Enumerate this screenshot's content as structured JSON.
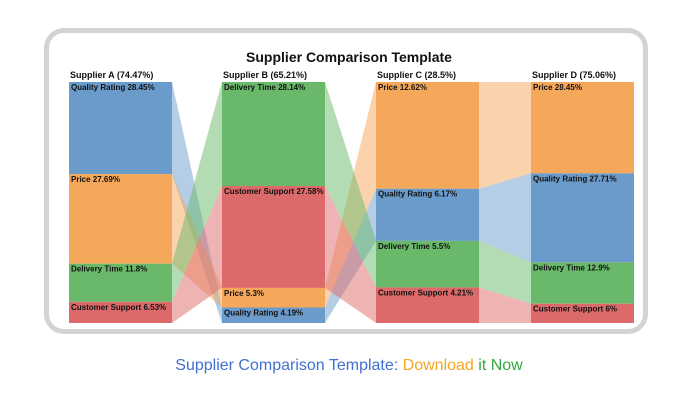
{
  "chart_data": {
    "type": "parallel-stacked-bar",
    "title": "Supplier Comparison Template",
    "categories": [
      "Quality Rating",
      "Price",
      "Delivery Time",
      "Customer Support"
    ],
    "colors": {
      "Quality Rating": "#6b9bcb",
      "Price": "#f5a85a",
      "Delivery Time": "#6ab96a",
      "Customer Support": "#dd6a6a"
    },
    "suppliers": [
      {
        "label": "Supplier A (74.47%)",
        "name": "Supplier A",
        "total": 74.47,
        "segments": [
          {
            "category": "Quality Rating",
            "value": 28.45,
            "label": "Quality Rating 28.45%"
          },
          {
            "category": "Price",
            "value": 27.69,
            "label": "Price 27.69%"
          },
          {
            "category": "Delivery Time",
            "value": 11.8,
            "label": "Delivery Time 11.8%"
          },
          {
            "category": "Customer Support",
            "value": 6.53,
            "label": "Customer Support 6.53%"
          }
        ]
      },
      {
        "label": "Supplier B (65.21%)",
        "name": "Supplier B",
        "total": 65.21,
        "segments": [
          {
            "category": "Delivery Time",
            "value": 28.14,
            "label": "Delivery Time 28.14%"
          },
          {
            "category": "Customer Support",
            "value": 27.58,
            "label": "Customer Support 27.58%"
          },
          {
            "category": "Price",
            "value": 5.3,
            "label": "Price 5.3%"
          },
          {
            "category": "Quality Rating",
            "value": 4.19,
            "label": "Quality Rating 4.19%"
          }
        ]
      },
      {
        "label": "Supplier C (28.5%)",
        "name": "Supplier C",
        "total": 28.5,
        "segments": [
          {
            "category": "Price",
            "value": 12.62,
            "label": "Price 12.62%"
          },
          {
            "category": "Quality Rating",
            "value": 6.17,
            "label": "Quality Rating 6.17%"
          },
          {
            "category": "Delivery Time",
            "value": 5.5,
            "label": "Delivery Time 5.5%"
          },
          {
            "category": "Customer Support",
            "value": 4.21,
            "label": "Customer Support 4.21%"
          }
        ]
      },
      {
        "label": "Supplier D (75.06%)",
        "name": "Supplier D",
        "total": 75.06,
        "segments": [
          {
            "category": "Price",
            "value": 28.45,
            "label": "Price 28.45%"
          },
          {
            "category": "Quality Rating",
            "value": 27.71,
            "label": "Quality Rating 27.71%"
          },
          {
            "category": "Delivery Time",
            "value": 12.9,
            "label": "Delivery Time 12.9%"
          },
          {
            "category": "Customer Support",
            "value": 6,
            "label": "Customer Support 6%"
          }
        ]
      }
    ]
  },
  "caption": {
    "part1": "Supplier Comparison Template: ",
    "part2": "Download",
    "part3": " it ",
    "part4": "Now"
  }
}
